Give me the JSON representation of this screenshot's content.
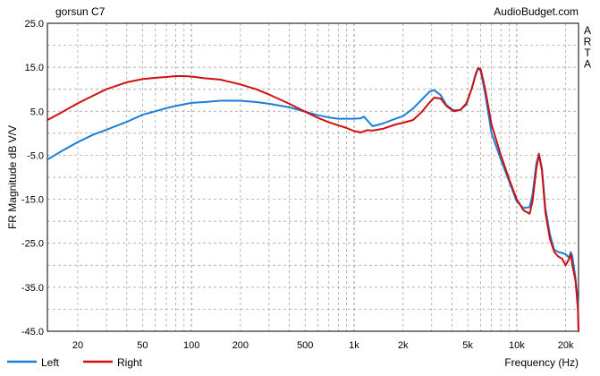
{
  "chart_data": {
    "type": "line",
    "title": "gorsun C7",
    "watermark": "AudioBudget.com",
    "side_label": "ARTA",
    "xlabel": "Frequency (Hz)",
    "ylabel": "FR Magnitude dB V/V",
    "x_scale": "log",
    "xlim": [
      13,
      24000
    ],
    "ylim": [
      -45,
      25
    ],
    "x_ticks": [
      20,
      50,
      100,
      200,
      500,
      1000,
      2000,
      5000,
      10000,
      20000
    ],
    "x_tick_labels": [
      "20",
      "50",
      "100",
      "200",
      "500",
      "1k",
      "2k",
      "5k",
      "10k",
      "20k"
    ],
    "y_ticks": [
      25,
      15,
      5,
      -5,
      -15,
      -25,
      -35,
      -45
    ],
    "y_tick_labels": [
      "25.0",
      "15.0",
      "5.0",
      "-5.0",
      "-15.0",
      "-25.0",
      "-35.0",
      "-45.0"
    ],
    "grid": true,
    "legend_position": "bottom-left",
    "series": [
      {
        "name": "Left",
        "color": "#1a7fd8",
        "points": [
          [
            13,
            -6.0
          ],
          [
            16,
            -4.0
          ],
          [
            20,
            -2.0
          ],
          [
            25,
            -0.3
          ],
          [
            30,
            0.8
          ],
          [
            40,
            2.6
          ],
          [
            50,
            4.2
          ],
          [
            60,
            5.0
          ],
          [
            70,
            5.7
          ],
          [
            80,
            6.2
          ],
          [
            100,
            6.9
          ],
          [
            120,
            7.1
          ],
          [
            150,
            7.4
          ],
          [
            200,
            7.4
          ],
          [
            250,
            7.1
          ],
          [
            300,
            6.7
          ],
          [
            400,
            5.9
          ],
          [
            500,
            4.9
          ],
          [
            600,
            4.1
          ],
          [
            700,
            3.6
          ],
          [
            800,
            3.3
          ],
          [
            900,
            3.3
          ],
          [
            1000,
            3.3
          ],
          [
            1100,
            3.4
          ],
          [
            1150,
            3.8
          ],
          [
            1200,
            3.0
          ],
          [
            1300,
            1.6
          ],
          [
            1500,
            2.2
          ],
          [
            1800,
            3.3
          ],
          [
            2000,
            3.9
          ],
          [
            2300,
            5.6
          ],
          [
            2600,
            7.6
          ],
          [
            2900,
            9.4
          ],
          [
            3100,
            9.8
          ],
          [
            3400,
            8.7
          ],
          [
            3700,
            6.4
          ],
          [
            4100,
            5.2
          ],
          [
            4500,
            5.3
          ],
          [
            4900,
            6.5
          ],
          [
            5300,
            10.3
          ],
          [
            5600,
            13.6
          ],
          [
            5800,
            14.8
          ],
          [
            6000,
            14.2
          ],
          [
            6400,
            9.0
          ],
          [
            7000,
            0.0
          ],
          [
            8000,
            -6.0
          ],
          [
            9000,
            -11.0
          ],
          [
            10000,
            -15.5
          ],
          [
            11000,
            -17.0
          ],
          [
            12000,
            -16.8
          ],
          [
            12500,
            -14.0
          ],
          [
            13200,
            -7.0
          ],
          [
            13700,
            -4.6
          ],
          [
            14300,
            -8.0
          ],
          [
            15000,
            -17.0
          ],
          [
            16000,
            -23.0
          ],
          [
            17000,
            -26.5
          ],
          [
            18000,
            -27.0
          ],
          [
            19000,
            -27.2
          ],
          [
            20000,
            -27.5
          ],
          [
            21000,
            -28.3
          ],
          [
            21500,
            -27.0
          ],
          [
            22000,
            -28.0
          ],
          [
            23000,
            -33.0
          ],
          [
            23800,
            -38.0
          ],
          [
            24000,
            -45.0
          ]
        ]
      },
      {
        "name": "Right",
        "color": "#d01010",
        "points": [
          [
            13,
            3.0
          ],
          [
            16,
            4.8
          ],
          [
            20,
            6.8
          ],
          [
            25,
            8.6
          ],
          [
            30,
            10.0
          ],
          [
            40,
            11.6
          ],
          [
            50,
            12.3
          ],
          [
            60,
            12.6
          ],
          [
            70,
            12.8
          ],
          [
            80,
            13.0
          ],
          [
            90,
            13.0
          ],
          [
            100,
            12.9
          ],
          [
            120,
            12.5
          ],
          [
            150,
            12.2
          ],
          [
            200,
            11.1
          ],
          [
            250,
            10.0
          ],
          [
            300,
            8.8
          ],
          [
            400,
            6.7
          ],
          [
            500,
            4.9
          ],
          [
            600,
            3.5
          ],
          [
            700,
            2.5
          ],
          [
            800,
            1.8
          ],
          [
            900,
            1.2
          ],
          [
            1000,
            0.5
          ],
          [
            1100,
            0.2
          ],
          [
            1200,
            0.7
          ],
          [
            1300,
            0.6
          ],
          [
            1500,
            1.0
          ],
          [
            1800,
            2.0
          ],
          [
            2000,
            2.4
          ],
          [
            2300,
            3.0
          ],
          [
            2600,
            4.8
          ],
          [
            2900,
            6.9
          ],
          [
            3100,
            8.1
          ],
          [
            3400,
            7.9
          ],
          [
            3700,
            6.2
          ],
          [
            4100,
            5.0
          ],
          [
            4500,
            5.3
          ],
          [
            4900,
            6.8
          ],
          [
            5300,
            10.2
          ],
          [
            5600,
            13.4
          ],
          [
            5800,
            14.8
          ],
          [
            6000,
            14.6
          ],
          [
            6400,
            10.0
          ],
          [
            7000,
            2.0
          ],
          [
            8000,
            -5.0
          ],
          [
            9000,
            -10.5
          ],
          [
            10000,
            -15.0
          ],
          [
            11000,
            -17.5
          ],
          [
            12000,
            -18.3
          ],
          [
            12500,
            -15.5
          ],
          [
            13200,
            -8.0
          ],
          [
            13700,
            -4.8
          ],
          [
            14300,
            -8.5
          ],
          [
            15000,
            -18.0
          ],
          [
            16000,
            -24.0
          ],
          [
            17000,
            -27.0
          ],
          [
            18000,
            -28.0
          ],
          [
            19000,
            -28.5
          ],
          [
            20000,
            -30.0
          ],
          [
            21000,
            -28.5
          ],
          [
            21500,
            -27.5
          ],
          [
            22000,
            -30.0
          ],
          [
            23000,
            -33.5
          ],
          [
            23800,
            -40.0
          ],
          [
            24000,
            -45.0
          ]
        ]
      }
    ]
  }
}
